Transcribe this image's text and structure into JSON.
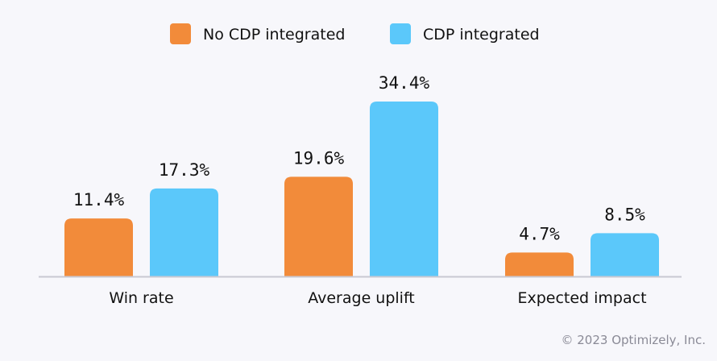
{
  "chart_data": {
    "type": "bar",
    "categories": [
      "Win rate",
      "Average uplift",
      "Expected impact"
    ],
    "series": [
      {
        "name": "No CDP integrated",
        "values": [
          11.4,
          19.6,
          4.7
        ],
        "labels": [
          "11.4%",
          "19.6%",
          "4.7%"
        ],
        "color": "#f28b3a"
      },
      {
        "name": "CDP integrated",
        "values": [
          17.3,
          34.4,
          8.5
        ],
        "labels": [
          "17.3%",
          "34.4%",
          "8.5%"
        ],
        "color": "#5bc8fa"
      }
    ],
    "title": "",
    "xlabel": "",
    "ylabel": "",
    "ylim": [
      0,
      34.4
    ],
    "grid": false,
    "legend": "top-center",
    "unit": "%"
  },
  "footer": {
    "copyright": "© 2023 Optimizely, Inc."
  }
}
